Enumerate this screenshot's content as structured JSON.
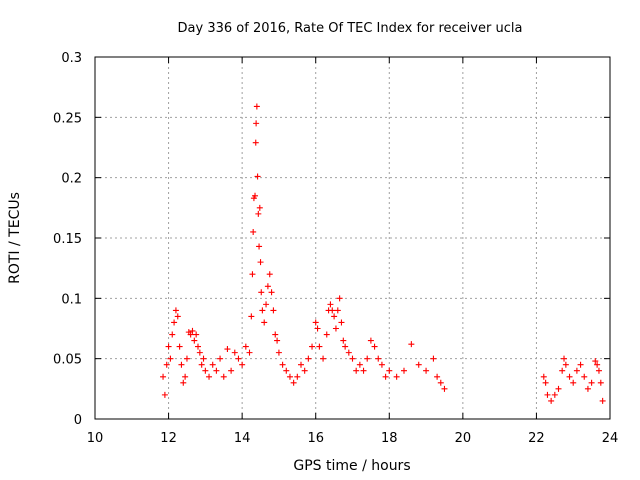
{
  "chart_data": {
    "type": "scatter",
    "title": "Day 336 of 2016, Rate Of TEC Index for receiver ucla",
    "xlabel": "GPS time / hours",
    "ylabel": "ROTI / TECUs",
    "xlim": [
      10,
      24
    ],
    "ylim": [
      0,
      0.3
    ],
    "xticks": [
      10,
      12,
      14,
      16,
      18,
      20,
      22,
      24
    ],
    "xtick_labels": [
      "10",
      "12",
      "14",
      "16",
      "18",
      "20",
      "22",
      "24"
    ],
    "yticks": [
      0,
      0.05,
      0.1,
      0.15,
      0.2,
      0.25,
      0.3
    ],
    "ytick_labels": [
      "0",
      "0.05",
      "0.1",
      "0.15",
      "0.2",
      "0.25",
      "0.3"
    ],
    "grid": true,
    "marker": "+",
    "series_color": "#ff0000",
    "series": [
      {
        "name": "ROTI",
        "points": [
          [
            11.85,
            0.035
          ],
          [
            11.9,
            0.02
          ],
          [
            11.95,
            0.045
          ],
          [
            12.0,
            0.06
          ],
          [
            12.05,
            0.05
          ],
          [
            12.1,
            0.07
          ],
          [
            12.15,
            0.08
          ],
          [
            12.2,
            0.09
          ],
          [
            12.25,
            0.085
          ],
          [
            12.3,
            0.06
          ],
          [
            12.35,
            0.045
          ],
          [
            12.4,
            0.03
          ],
          [
            12.45,
            0.035
          ],
          [
            12.5,
            0.05
          ],
          [
            12.55,
            0.072
          ],
          [
            12.6,
            0.07
          ],
          [
            12.65,
            0.073
          ],
          [
            12.7,
            0.065
          ],
          [
            12.75,
            0.07
          ],
          [
            12.8,
            0.06
          ],
          [
            12.85,
            0.055
          ],
          [
            12.9,
            0.045
          ],
          [
            12.95,
            0.05
          ],
          [
            13.0,
            0.04
          ],
          [
            13.1,
            0.035
          ],
          [
            13.2,
            0.045
          ],
          [
            13.3,
            0.04
          ],
          [
            13.4,
            0.05
          ],
          [
            13.5,
            0.035
          ],
          [
            13.6,
            0.058
          ],
          [
            13.7,
            0.04
          ],
          [
            13.8,
            0.055
          ],
          [
            13.9,
            0.05
          ],
          [
            14.0,
            0.045
          ],
          [
            14.1,
            0.06
          ],
          [
            14.2,
            0.055
          ],
          [
            14.25,
            0.085
          ],
          [
            14.28,
            0.12
          ],
          [
            14.3,
            0.155
          ],
          [
            14.32,
            0.183
          ],
          [
            14.35,
            0.185
          ],
          [
            14.37,
            0.229
          ],
          [
            14.38,
            0.245
          ],
          [
            14.4,
            0.259
          ],
          [
            14.42,
            0.201
          ],
          [
            14.44,
            0.17
          ],
          [
            14.46,
            0.143
          ],
          [
            14.48,
            0.175
          ],
          [
            14.5,
            0.13
          ],
          [
            14.52,
            0.105
          ],
          [
            14.55,
            0.09
          ],
          [
            14.6,
            0.08
          ],
          [
            14.65,
            0.095
          ],
          [
            14.7,
            0.11
          ],
          [
            14.75,
            0.12
          ],
          [
            14.8,
            0.105
          ],
          [
            14.85,
            0.09
          ],
          [
            14.9,
            0.07
          ],
          [
            14.95,
            0.065
          ],
          [
            15.0,
            0.055
          ],
          [
            15.1,
            0.045
          ],
          [
            15.2,
            0.04
          ],
          [
            15.3,
            0.035
          ],
          [
            15.4,
            0.03
          ],
          [
            15.5,
            0.035
          ],
          [
            15.6,
            0.045
          ],
          [
            15.7,
            0.04
          ],
          [
            15.8,
            0.05
          ],
          [
            15.9,
            0.06
          ],
          [
            16.0,
            0.08
          ],
          [
            16.05,
            0.075
          ],
          [
            16.1,
            0.06
          ],
          [
            16.2,
            0.05
          ],
          [
            16.3,
            0.07
          ],
          [
            16.35,
            0.09
          ],
          [
            16.4,
            0.095
          ],
          [
            16.45,
            0.09
          ],
          [
            16.5,
            0.085
          ],
          [
            16.55,
            0.075
          ],
          [
            16.6,
            0.09
          ],
          [
            16.65,
            0.1
          ],
          [
            16.7,
            0.08
          ],
          [
            16.75,
            0.065
          ],
          [
            16.8,
            0.06
          ],
          [
            16.9,
            0.055
          ],
          [
            17.0,
            0.05
          ],
          [
            17.1,
            0.04
          ],
          [
            17.2,
            0.045
          ],
          [
            17.3,
            0.04
          ],
          [
            17.4,
            0.05
          ],
          [
            17.5,
            0.065
          ],
          [
            17.6,
            0.06
          ],
          [
            17.7,
            0.05
          ],
          [
            17.8,
            0.045
          ],
          [
            17.9,
            0.035
          ],
          [
            18.0,
            0.04
          ],
          [
            18.2,
            0.035
          ],
          [
            18.4,
            0.04
          ],
          [
            18.6,
            0.062
          ],
          [
            18.8,
            0.045
          ],
          [
            19.0,
            0.04
          ],
          [
            19.2,
            0.05
          ],
          [
            19.3,
            0.035
          ],
          [
            19.4,
            0.03
          ],
          [
            19.5,
            0.025
          ],
          [
            22.2,
            0.035
          ],
          [
            22.25,
            0.03
          ],
          [
            22.3,
            0.02
          ],
          [
            22.4,
            0.015
          ],
          [
            22.5,
            0.02
          ],
          [
            22.6,
            0.025
          ],
          [
            22.7,
            0.04
          ],
          [
            22.75,
            0.05
          ],
          [
            22.8,
            0.045
          ],
          [
            22.9,
            0.035
          ],
          [
            23.0,
            0.03
          ],
          [
            23.1,
            0.04
          ],
          [
            23.2,
            0.045
          ],
          [
            23.3,
            0.035
          ],
          [
            23.4,
            0.025
          ],
          [
            23.5,
            0.03
          ],
          [
            23.6,
            0.048
          ],
          [
            23.65,
            0.045
          ],
          [
            23.7,
            0.04
          ],
          [
            23.75,
            0.03
          ],
          [
            23.8,
            0.015
          ]
        ]
      }
    ]
  }
}
